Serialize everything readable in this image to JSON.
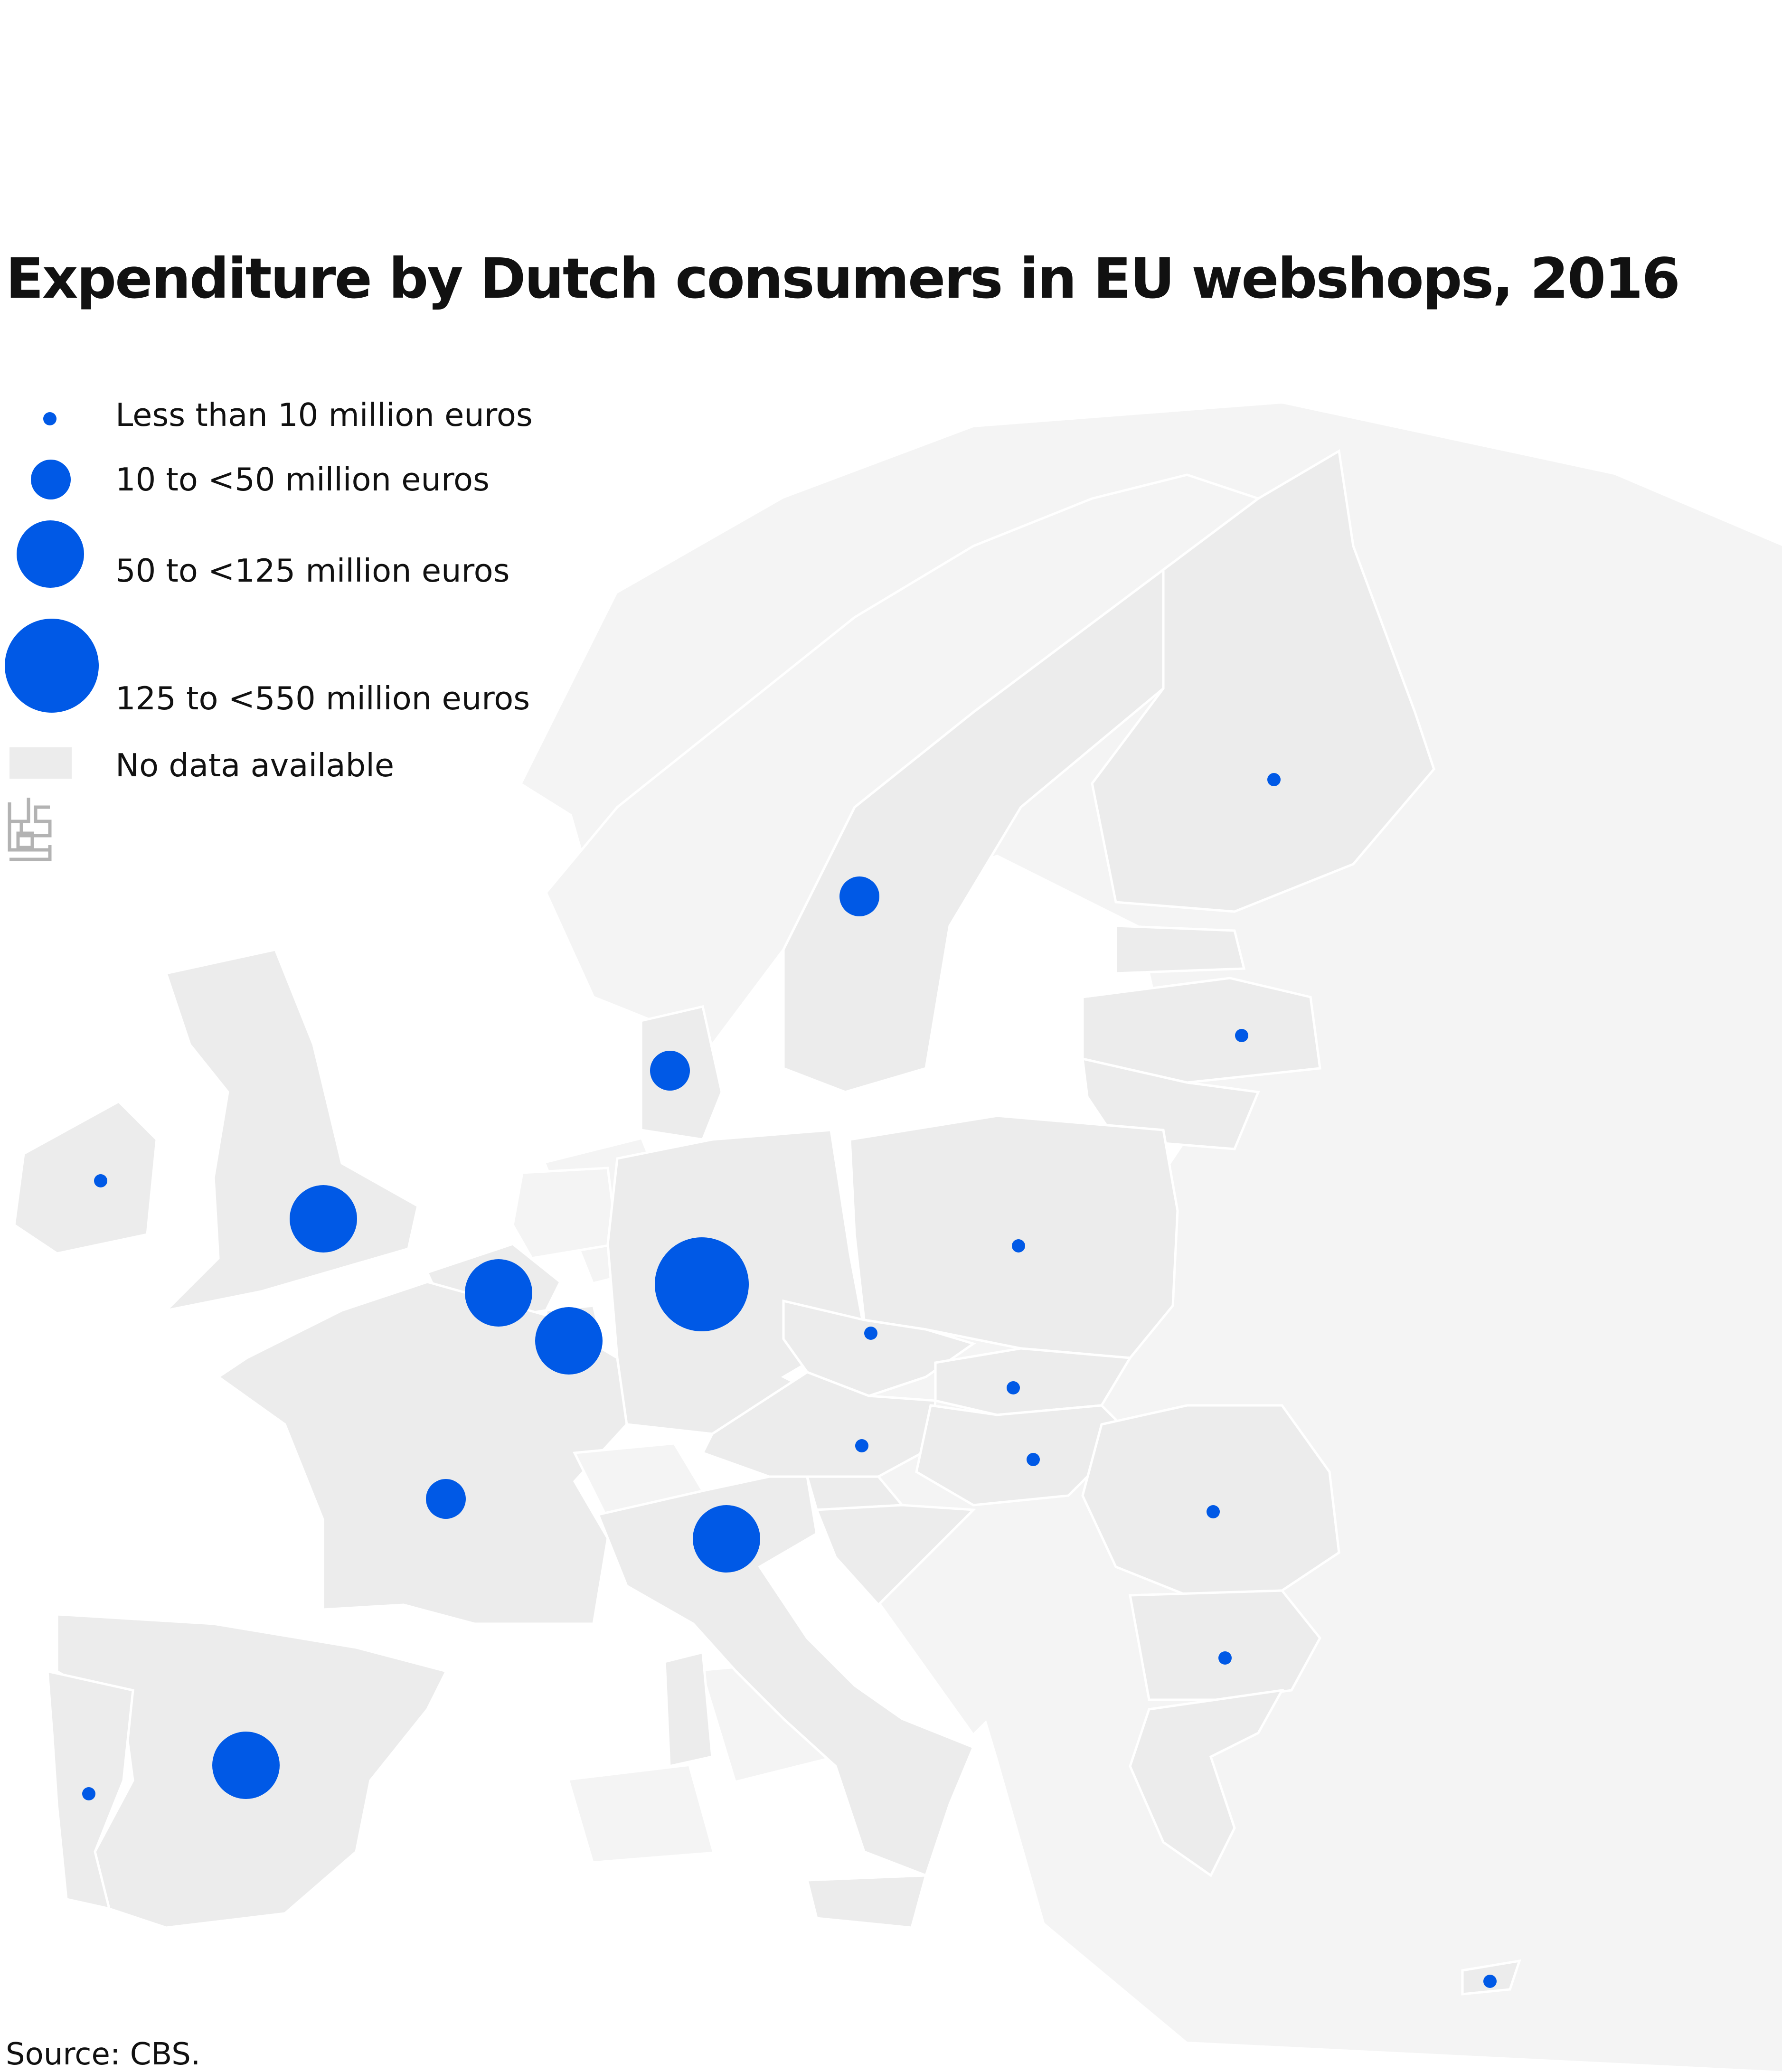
{
  "title": "Expenditure by Dutch consumers in EU webshops, 2016",
  "colors": {
    "marker": "#0059e6",
    "country_with_data": "#ececec",
    "country_no_data": "#f4f4f4",
    "background": "#ffffff",
    "logo": "#b3b3b3"
  },
  "legend": {
    "items": [
      {
        "label": "Less than 10 million euros",
        "size_class": 1
      },
      {
        "label": "10 to <50 million euros",
        "size_class": 2
      },
      {
        "label": "50  to <125 million euros",
        "size_class": 3
      },
      {
        "label": "125 to <550 million euros",
        "size_class": 4
      }
    ],
    "no_data_label": "No data available"
  },
  "logo": {
    "name": "cbs-logo"
  },
  "source": "Source: CBS.",
  "countries": [
    {
      "name": "Finland",
      "size_class": 1
    },
    {
      "name": "Sweden",
      "size_class": 2
    },
    {
      "name": "Latvia",
      "size_class": 1
    },
    {
      "name": "Denmark",
      "size_class": 2
    },
    {
      "name": "Ireland",
      "size_class": 1
    },
    {
      "name": "United Kingdom",
      "size_class": 3
    },
    {
      "name": "Belgium",
      "size_class": 3
    },
    {
      "name": "Germany",
      "size_class": 4
    },
    {
      "name": "Luxembourg",
      "size_class": 3
    },
    {
      "name": "Poland",
      "size_class": 1
    },
    {
      "name": "Czech Republic",
      "size_class": 1
    },
    {
      "name": "Slovakia",
      "size_class": 1
    },
    {
      "name": "Austria",
      "size_class": 1
    },
    {
      "name": "Hungary",
      "size_class": 1
    },
    {
      "name": "France",
      "size_class": 2
    },
    {
      "name": "Italy",
      "size_class": 3
    },
    {
      "name": "Romania",
      "size_class": 1
    },
    {
      "name": "Bulgaria",
      "size_class": 1
    },
    {
      "name": "Spain",
      "size_class": 3
    },
    {
      "name": "Portugal",
      "size_class": 1
    },
    {
      "name": "Cyprus",
      "size_class": 1
    }
  ]
}
